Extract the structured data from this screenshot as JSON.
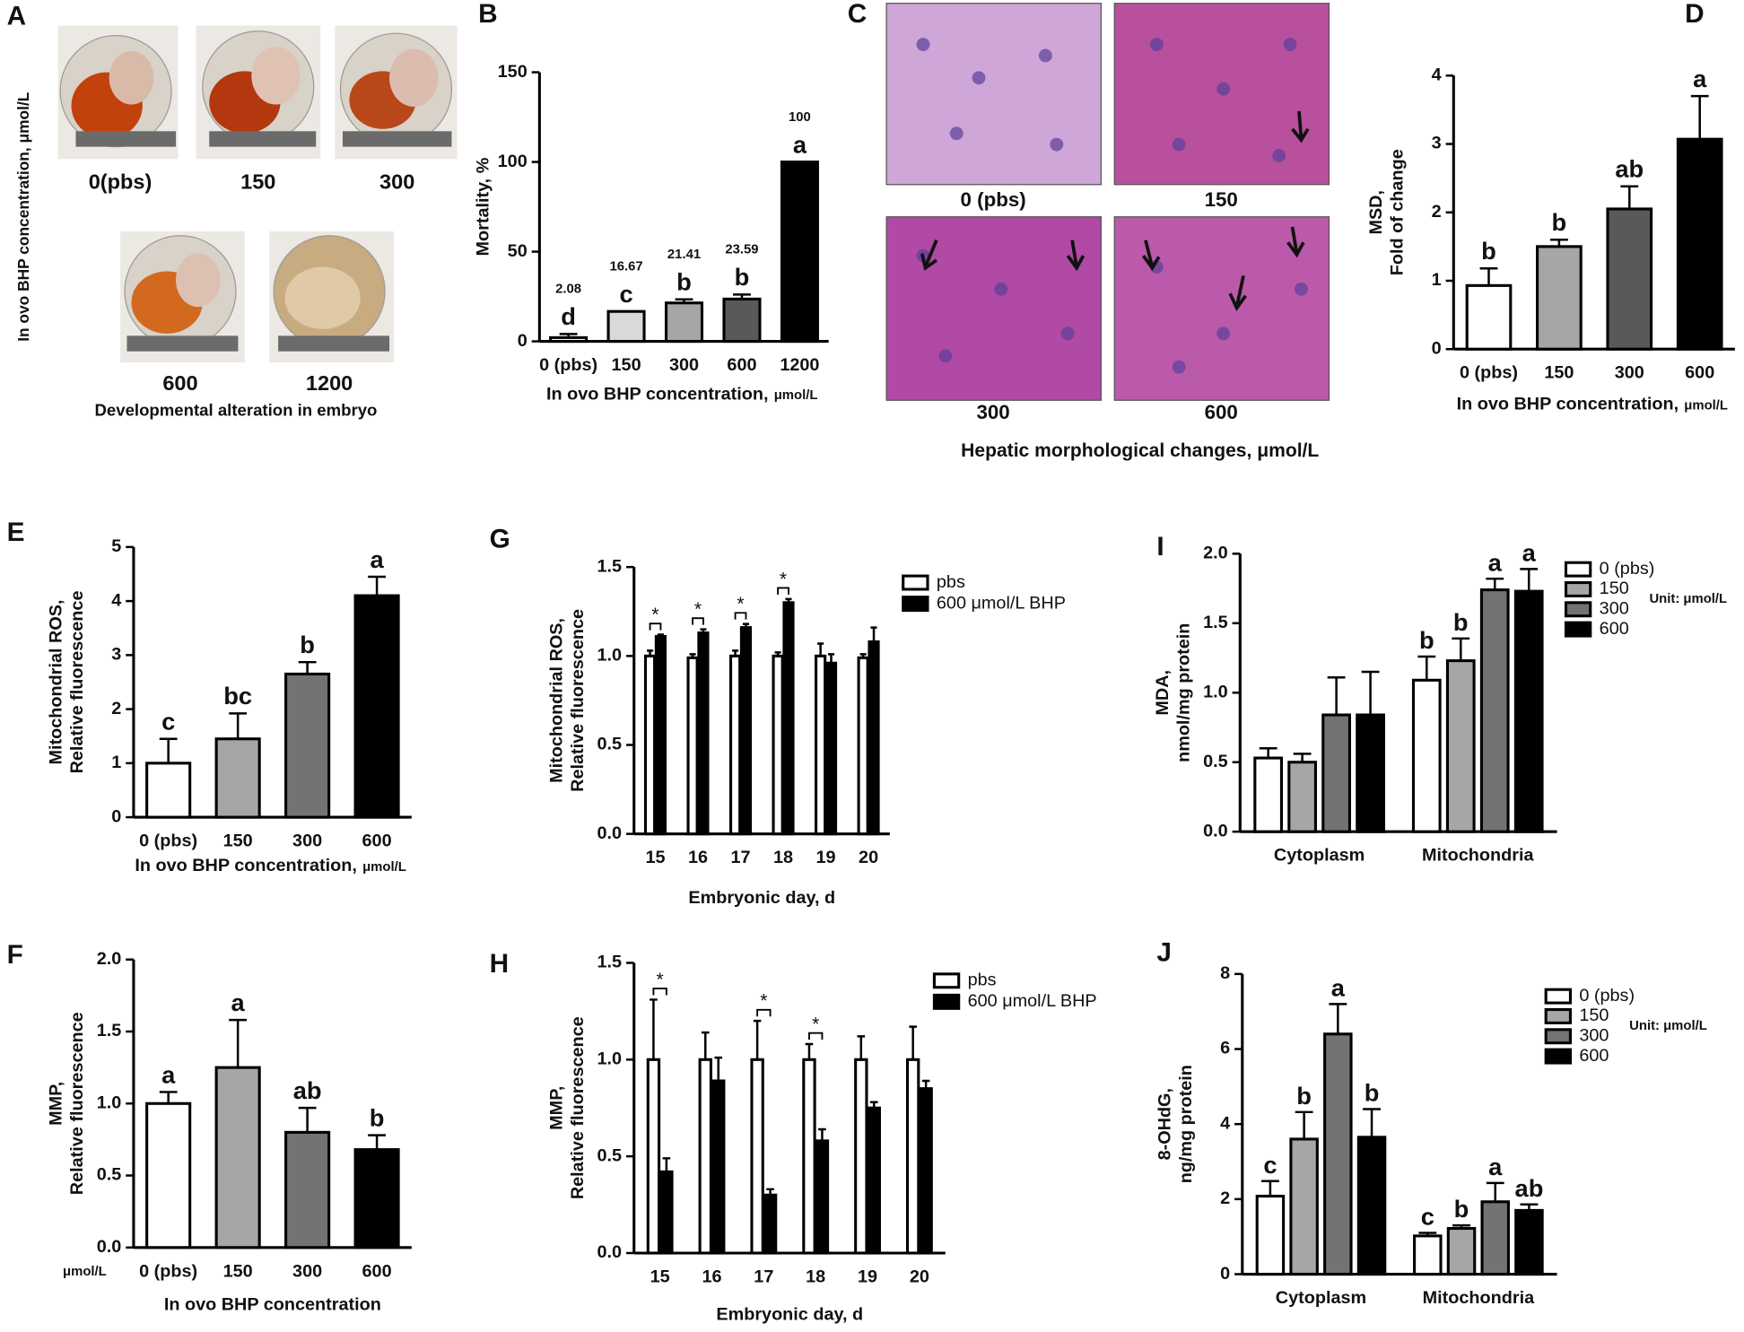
{
  "panel_a": {
    "letter": "A",
    "labels": [
      "0(pbs)",
      "150",
      "300",
      "600",
      "1200"
    ],
    "caption": "Developmental alteration in embryo",
    "axis_label": "In ovo BHP concentration, μmol/L"
  },
  "panel_c": {
    "letter": "C",
    "labels": [
      "0 (pbs)",
      "150",
      "300",
      "600"
    ],
    "caption": "Hepatic morphological changes,  μmol/L"
  },
  "chart_data": [
    {
      "type": "bar",
      "panel": "B",
      "categories": [
        "0 (pbs)",
        "150",
        "300",
        "600",
        "1200"
      ],
      "values": [
        2.08,
        16.67,
        21.41,
        23.59,
        100
      ],
      "errors": [
        2,
        0,
        2,
        2.5,
        0
      ],
      "letters": [
        "d",
        "c",
        "b",
        "b",
        "a"
      ],
      "data_labels": true,
      "colors": [
        "#ffffff",
        "#d9d9d9",
        "#a6a6a6",
        "#595959",
        "#000000"
      ],
      "ylim": [
        0,
        150
      ],
      "yticks": [
        0,
        50,
        100,
        150
      ],
      "ylabel": [
        "Mortality, %"
      ],
      "xlabel": "In ovo BHP concentration,",
      "xlabel_unit": "μmol/L"
    },
    {
      "type": "bar",
      "panel": "D",
      "categories": [
        "0 (pbs)",
        "150",
        "300",
        "600"
      ],
      "values": [
        0.93,
        1.5,
        2.05,
        3.07
      ],
      "errors": [
        0.25,
        0.1,
        0.33,
        0.63
      ],
      "letters": [
        "b",
        "b",
        "ab",
        "a"
      ],
      "colors": [
        "#ffffff",
        "#a6a6a6",
        "#595959",
        "#000000"
      ],
      "ylim": [
        0,
        4
      ],
      "yticks": [
        0,
        1,
        2,
        3,
        4
      ],
      "ylabel": [
        "MSD,",
        "Fold of change"
      ],
      "xlabel": "In ovo BHP concentration,",
      "xlabel_unit": "μmol/L"
    },
    {
      "type": "bar",
      "panel": "E",
      "categories": [
        "0 (pbs)",
        "150",
        "300",
        "600"
      ],
      "values": [
        1.0,
        1.45,
        2.65,
        4.1
      ],
      "errors": [
        0.45,
        0.47,
        0.22,
        0.35
      ],
      "letters": [
        "c",
        "bc",
        "b",
        "a"
      ],
      "colors": [
        "#ffffff",
        "#a6a6a6",
        "#737373",
        "#000000"
      ],
      "ylim": [
        0,
        5
      ],
      "yticks": [
        0,
        1,
        2,
        3,
        4,
        5
      ],
      "ylabel": [
        "Mitochondrial ROS,",
        "Relative fluorescence"
      ],
      "xlabel": "In ovo BHP concentration,",
      "xlabel_unit": "μmol/L"
    },
    {
      "type": "bar",
      "panel": "F",
      "categories": [
        "0 (pbs)",
        "150",
        "300",
        "600"
      ],
      "values": [
        1.0,
        1.25,
        0.8,
        0.68
      ],
      "errors": [
        0.08,
        0.33,
        0.17,
        0.1
      ],
      "letters": [
        "a",
        "a",
        "ab",
        "b"
      ],
      "colors": [
        "#ffffff",
        "#a6a6a6",
        "#737373",
        "#000000"
      ],
      "ylim": [
        0,
        2
      ],
      "yticks": [
        {
          "value": 0,
          "label": "0.0"
        },
        0.5,
        {
          "value": 1,
          "label": "1.0"
        },
        1.5,
        {
          "value": 2,
          "label": "2.0"
        }
      ],
      "ylabel": [
        "MMP,",
        "Relative fluorescence"
      ],
      "xlabel": "In ovo BHP concentration",
      "x_prefix": "μmol/L"
    },
    {
      "type": "bar",
      "panel": "G",
      "categories": [
        "15",
        "16",
        "17",
        "18",
        "19",
        "20"
      ],
      "series": [
        {
          "name": "pbs",
          "color": "#ffffff",
          "values": [
            1.0,
            0.99,
            1.0,
            1.0,
            1.0,
            0.99
          ],
          "errors": [
            0.03,
            0.02,
            0.03,
            0.02,
            0.07,
            0.02
          ]
        },
        {
          "name": "600 μmol/L BHP",
          "color": "#000000",
          "values": [
            1.11,
            1.13,
            1.16,
            1.3,
            0.96,
            1.08
          ],
          "errors": [
            0.01,
            0.02,
            0.02,
            0.02,
            0.05,
            0.08
          ]
        }
      ],
      "significance": [
        "*",
        "*",
        "*",
        "*",
        null,
        null
      ],
      "ylim": [
        0,
        1.5
      ],
      "yticks": [
        {
          "value": 0,
          "label": "0.0"
        },
        0.5,
        {
          "value": 1,
          "label": "1.0"
        },
        1.5
      ],
      "ylabel": [
        "Mitochondrial ROS,",
        "Relative fluorescence"
      ],
      "xlabel": "Embryonic day, d"
    },
    {
      "type": "bar",
      "panel": "H",
      "categories": [
        "15",
        "16",
        "17",
        "18",
        "19",
        "20"
      ],
      "series": [
        {
          "name": "pbs",
          "color": "#ffffff",
          "values": [
            1.0,
            1.0,
            1.0,
            1.0,
            1.0,
            1.0
          ],
          "errors": [
            0.31,
            0.14,
            0.2,
            0.08,
            0.12,
            0.17
          ]
        },
        {
          "name": "600 μmol/L BHP",
          "color": "#000000",
          "values": [
            0.42,
            0.89,
            0.3,
            0.58,
            0.75,
            0.85
          ],
          "errors": [
            0.07,
            0.12,
            0.03,
            0.06,
            0.03,
            0.04
          ]
        }
      ],
      "significance": [
        "*",
        null,
        "*",
        "*",
        null,
        null
      ],
      "ylim": [
        0,
        1.5
      ],
      "yticks": [
        {
          "value": 0,
          "label": "0.0"
        },
        0.5,
        {
          "value": 1,
          "label": "1.0"
        },
        1.5
      ],
      "ylabel": [
        "MMP,",
        "Relative fluorescence"
      ],
      "xlabel": "Embryonic day, d"
    },
    {
      "type": "bar",
      "panel": "I",
      "categories": [
        "Cytoplasm",
        "Mitochondria"
      ],
      "series": [
        {
          "name": "0 (pbs)",
          "color": "#ffffff",
          "values": [
            0.53,
            1.09
          ],
          "errors": [
            0.07,
            0.17
          ],
          "letters": [
            null,
            "b"
          ]
        },
        {
          "name": "150",
          "color": "#a6a6a6",
          "values": [
            0.5,
            1.23
          ],
          "errors": [
            0.06,
            0.16
          ],
          "letters": [
            null,
            "b"
          ]
        },
        {
          "name": "300",
          "color": "#737373",
          "values": [
            0.84,
            1.74
          ],
          "errors": [
            0.27,
            0.08
          ],
          "letters": [
            null,
            "a"
          ]
        },
        {
          "name": "600",
          "color": "#000000",
          "values": [
            0.84,
            1.73
          ],
          "errors": [
            0.31,
            0.16
          ],
          "letters": [
            null,
            "a"
          ]
        }
      ],
      "legend_note": "Unit: μmol/L",
      "ylim": [
        0,
        2
      ],
      "yticks": [
        {
          "value": 0,
          "label": "0.0"
        },
        0.5,
        {
          "value": 1,
          "label": "1.0"
        },
        1.5,
        {
          "value": 2,
          "label": "2.0"
        }
      ],
      "ylabel": [
        "MDA,",
        "nmol/mg protein"
      ]
    },
    {
      "type": "bar",
      "panel": "J",
      "categories": [
        "Cytoplasm",
        "Mitochondria"
      ],
      "series": [
        {
          "name": "0 (pbs)",
          "color": "#ffffff",
          "values": [
            2.08,
            1.02
          ],
          "errors": [
            0.4,
            0.08
          ],
          "letters": [
            "c",
            "c"
          ]
        },
        {
          "name": "150",
          "color": "#a6a6a6",
          "values": [
            3.6,
            1.22
          ],
          "errors": [
            0.72,
            0.08
          ],
          "letters": [
            "b",
            "b"
          ]
        },
        {
          "name": "300",
          "color": "#737373",
          "values": [
            6.4,
            1.93
          ],
          "errors": [
            0.8,
            0.5
          ],
          "letters": [
            "a",
            "a"
          ]
        },
        {
          "name": "600",
          "color": "#000000",
          "values": [
            3.65,
            1.7
          ],
          "errors": [
            0.75,
            0.16
          ],
          "letters": [
            "b",
            "ab"
          ]
        }
      ],
      "legend_note": "Unit: μmol/L",
      "ylim": [
        0,
        8
      ],
      "yticks": [
        0,
        2,
        4,
        6,
        8
      ],
      "ylabel": [
        "8-OHdG,",
        "ng/mg protein"
      ]
    }
  ]
}
